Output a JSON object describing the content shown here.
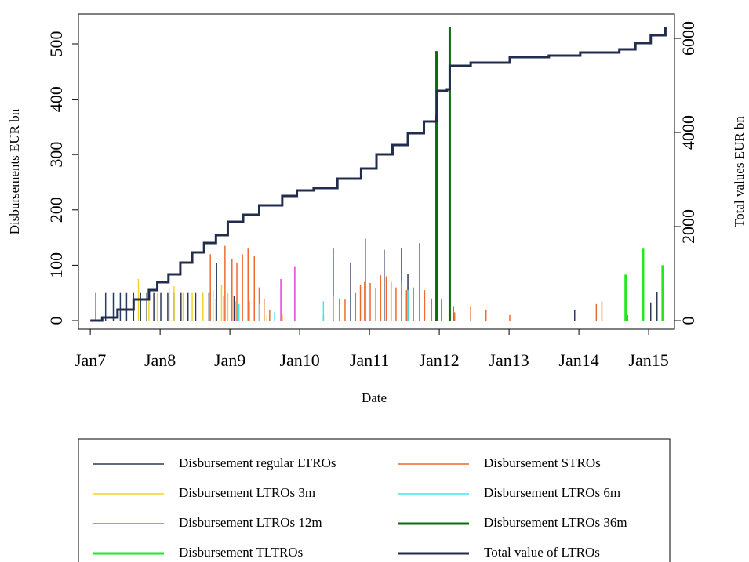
{
  "chart_data": {
    "type": "line",
    "xlabel": "Date",
    "ylabel": "Disbursements EUR bn",
    "y2label": "Total values EUR bn",
    "xlim": [
      2006.83,
      2015.37
    ],
    "ylim": [
      -15.6,
      553.8
    ],
    "y2lim": [
      -183,
      6517
    ],
    "xticks": [
      {
        "value": 2007,
        "label": "Jan7"
      },
      {
        "value": 2008,
        "label": "Jan8"
      },
      {
        "value": 2009,
        "label": "Jan9"
      },
      {
        "value": 2010,
        "label": "Jan10"
      },
      {
        "value": 2011,
        "label": "Jan11"
      },
      {
        "value": 2012,
        "label": "Jan12"
      },
      {
        "value": 2013,
        "label": "Jan13"
      },
      {
        "value": 2014,
        "label": "Jan14"
      },
      {
        "value": 2015,
        "label": "Jan15"
      }
    ],
    "yticks": [
      0,
      100,
      200,
      300,
      400,
      500
    ],
    "y2ticks": [
      0,
      2000,
      4000,
      6000
    ],
    "legend": "bottom",
    "series": [
      {
        "name": "Disbursement regular LTROs",
        "color": "#2b3b5c",
        "style": "spike",
        "x": [
          2007.08,
          2007.22,
          2007.33,
          2007.43,
          2007.52,
          2007.62,
          2007.72,
          2007.81,
          2007.91,
          2008.01,
          2008.11,
          2008.2,
          2008.3,
          2008.4,
          2008.51,
          2008.61,
          2008.7,
          2008.81,
          2009.06,
          2010.48,
          2010.73,
          2010.94,
          2011.21,
          2011.46,
          2011.55,
          2011.72,
          2012.2,
          2013.94,
          2015.03,
          2015.12
        ],
        "values": [
          50,
          50,
          50,
          50,
          50,
          50,
          50,
          50,
          50,
          50,
          50,
          50,
          50,
          50,
          50,
          50,
          50,
          104,
          45,
          130,
          105,
          148,
          128,
          131,
          85,
          140,
          25,
          20,
          33,
          52
        ]
      },
      {
        "name": "Disbursement STROs",
        "color": "#ee6a2e",
        "style": "spike",
        "x": [
          2008.72,
          2008.93,
          2009.03,
          2009.1,
          2009.18,
          2009.26,
          2009.35,
          2009.42,
          2009.49,
          2009.57,
          2009.75,
          2010.34,
          2010.48,
          2010.57,
          2010.65,
          2010.8,
          2010.87,
          2010.93,
          2011.01,
          2011.09,
          2011.16,
          2011.24,
          2011.31,
          2011.38,
          2011.46,
          2011.53,
          2011.63,
          2011.79,
          2011.89,
          2012.03,
          2012.22,
          2012.45,
          2012.67,
          2013.01,
          2014.25,
          2014.33,
          2014.7
        ],
        "values": [
          120,
          135,
          112,
          105,
          120,
          130,
          116,
          60,
          40,
          20,
          10,
          10,
          45,
          40,
          38,
          50,
          65,
          70,
          68,
          58,
          82,
          80,
          70,
          60,
          70,
          55,
          60,
          55,
          40,
          38,
          15,
          25,
          20,
          10,
          30,
          35,
          10
        ]
      },
      {
        "name": "Disbursement LTROs 3m",
        "color": "#f5d327",
        "style": "spike",
        "x": [
          2007.69,
          2007.84,
          2007.96,
          2008.13,
          2008.2,
          2008.33,
          2008.46,
          2008.61,
          2008.76,
          2008.88,
          2008.97,
          2009.08,
          2009.53,
          2009.75
        ],
        "values": [
          75,
          45,
          50,
          60,
          62,
          50,
          50,
          50,
          55,
          65,
          50,
          35,
          10,
          10
        ]
      },
      {
        "name": "Disbursement LTROs 6m",
        "color": "#3ee8f0",
        "style": "spike",
        "x": [
          2008.8,
          2008.91,
          2009.13,
          2009.28,
          2009.42,
          2009.64,
          2010.34,
          2011.55
        ],
        "values": [
          40,
          45,
          30,
          35,
          30,
          15,
          35,
          55
        ]
      },
      {
        "name": "Disbursement LTROs 12m",
        "color": "#e040e0",
        "style": "spike",
        "x": [
          2009.73,
          2009.93
        ],
        "values": [
          75,
          97
        ]
      },
      {
        "name": "Disbursement LTROs 36m",
        "color": "#0b6e0b",
        "style": "spike",
        "width": 3,
        "x": [
          2011.96,
          2012.15
        ],
        "values": [
          487,
          530
        ]
      },
      {
        "name": "Disbursement TLTROs",
        "color": "#22e822",
        "style": "spike",
        "width": 3,
        "x": [
          2014.67,
          2014.92,
          2015.2
        ],
        "values": [
          83,
          130,
          100
        ]
      },
      {
        "name": "Total value of LTROs",
        "color": "#222d4e",
        "style": "step",
        "width": 3,
        "axis": "y2",
        "x": [
          2007.0,
          2007.17,
          2007.39,
          2007.62,
          2007.84,
          2007.96,
          2008.12,
          2008.29,
          2008.46,
          2008.63,
          2008.8,
          2008.97,
          2009.19,
          2009.42,
          2009.75,
          2009.96,
          2010.2,
          2010.54,
          2010.88,
          2011.1,
          2011.33,
          2011.55,
          2011.78,
          2011.96,
          2011.97,
          2012.11,
          2012.15,
          2012.45,
          2013.01,
          2013.57,
          2014.02,
          2014.58,
          2014.81,
          2015.03,
          2015.24
        ],
        "values": [
          0,
          67,
          233,
          450,
          650,
          817,
          983,
          1233,
          1450,
          1650,
          1817,
          2100,
          2250,
          2450,
          2650,
          2767,
          2817,
          3017,
          3233,
          3533,
          3733,
          3983,
          4233,
          4350,
          4883,
          4917,
          5417,
          5483,
          5600,
          5633,
          5700,
          5767,
          5900,
          6067,
          6233
        ]
      }
    ]
  }
}
